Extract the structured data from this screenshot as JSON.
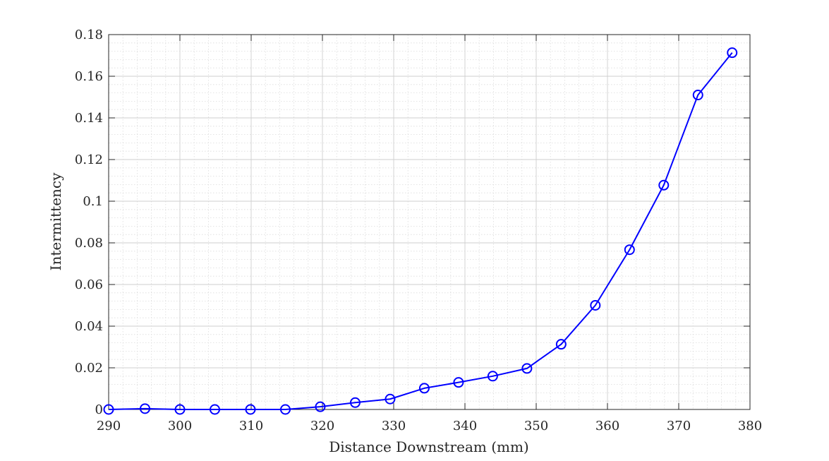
{
  "chart_data": {
    "type": "line",
    "title": "",
    "xlabel": "Distance Downstream (mm)",
    "ylabel": "Intermittency",
    "xlim": [
      290,
      380
    ],
    "ylim": [
      0,
      0.18
    ],
    "xticks": [
      290,
      300,
      310,
      320,
      330,
      340,
      350,
      360,
      370,
      380
    ],
    "xtick_labels": [
      "290",
      "300",
      "310",
      "320",
      "330",
      "340",
      "350",
      "360",
      "370",
      "380"
    ],
    "yticks": [
      0,
      0.02,
      0.04,
      0.06,
      0.08,
      0.1,
      0.12,
      0.14,
      0.16,
      0.18
    ],
    "ytick_labels": [
      "0",
      "0.02",
      "0.04",
      "0.06",
      "0.08",
      "0.1",
      "0.12",
      "0.14",
      "0.16",
      "0.18"
    ],
    "grid": true,
    "minor_grid": true,
    "marker": "circle",
    "series_color": "#0000ff",
    "series": [
      {
        "x": [
          290,
          295.1,
          300,
          304.9,
          309.9,
          314.8,
          319.7,
          324.6,
          329.5,
          334.3,
          339.1,
          343.9,
          348.7,
          353.5,
          358.3,
          363.1,
          367.9,
          372.7,
          377.5
        ],
        "values": [
          0,
          0.0004,
          0,
          0,
          0,
          0,
          0.0013,
          0.0033,
          0.005,
          0.0102,
          0.013,
          0.016,
          0.0197,
          0.0313,
          0.05,
          0.0767,
          0.1077,
          0.151,
          0.1713
        ]
      }
    ]
  }
}
